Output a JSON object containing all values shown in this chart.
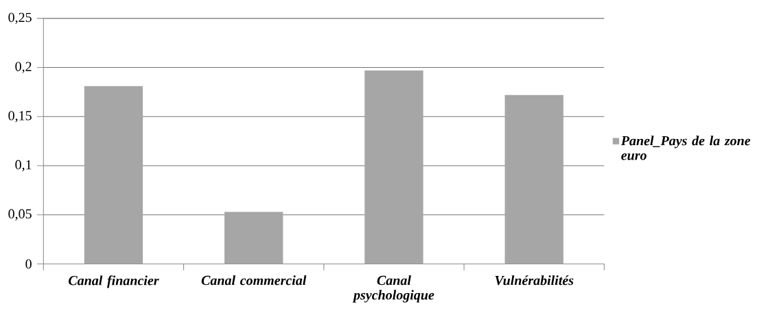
{
  "chart_data": {
    "type": "bar",
    "categories": [
      "Canal financier",
      "Canal commercial",
      "Canal psychologique",
      "Vulnérabilités"
    ],
    "series": [
      {
        "name": "Panel_Pays de la zone euro",
        "color": "#a6a6a6",
        "values": [
          0.181,
          0.053,
          0.197,
          0.172
        ]
      }
    ],
    "ylim": [
      0,
      0.25
    ],
    "yticks": [
      {
        "value": 0,
        "label": "0"
      },
      {
        "value": 0.05,
        "label": "0,05"
      },
      {
        "value": 0.1,
        "label": "0,1"
      },
      {
        "value": 0.15,
        "label": "0,15"
      },
      {
        "value": 0.2,
        "label": "0,2"
      },
      {
        "value": 0.25,
        "label": "0,25"
      }
    ],
    "grid": "y",
    "legend": "right"
  }
}
